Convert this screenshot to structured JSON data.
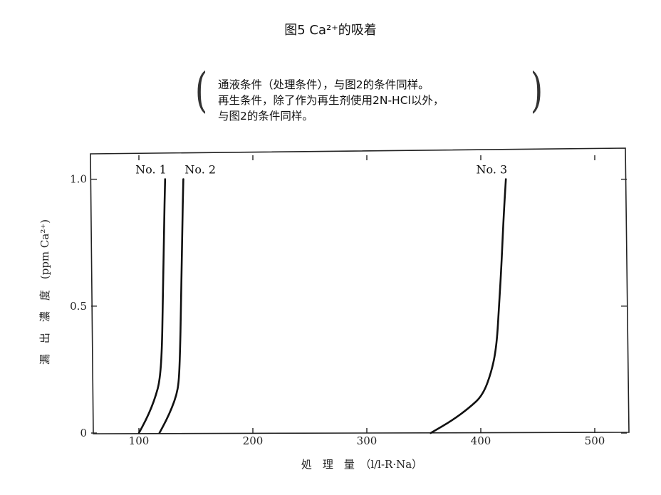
{
  "title": "图5  Ca²⁺的吸着",
  "note": {
    "line1": "通液条件（处理条件），与图2的条件同样。",
    "line2": "再生条件，除了作为再生剂使用2N-HCl以外，",
    "line3": "与图2的条件同样。"
  },
  "chart_data": {
    "type": "line",
    "xlabel": "処　理　量　（l/l-R·Na）",
    "ylabel": "漏　出　濃　度　(ppm Ca²⁺)",
    "xlim": [
      60,
      530
    ],
    "ylim": [
      0,
      1.1
    ],
    "x_ticks": [
      {
        "v": 100,
        "label": "100"
      },
      {
        "v": 200,
        "label": "200"
      },
      {
        "v": 300,
        "label": "300"
      },
      {
        "v": 400,
        "label": "400"
      },
      {
        "v": 500,
        "label": "500"
      }
    ],
    "y_ticks": [
      {
        "v": 0,
        "label": "0"
      },
      {
        "v": 0.5,
        "label": "0.5"
      },
      {
        "v": 1.0,
        "label": "1.0"
      }
    ],
    "series": [
      {
        "name": "No. 1",
        "x": [
          100,
          106,
          111,
          115,
          118,
          120,
          121,
          122,
          123
        ],
        "y": [
          0,
          0.05,
          0.1,
          0.15,
          0.2,
          0.3,
          0.5,
          0.8,
          1.0
        ]
      },
      {
        "name": "No. 2",
        "x": [
          118,
          124,
          129,
          133,
          135,
          136,
          137,
          138,
          139
        ],
        "y": [
          0,
          0.05,
          0.1,
          0.15,
          0.2,
          0.3,
          0.5,
          0.8,
          1.0
        ]
      },
      {
        "name": "No. 3",
        "x": [
          356,
          375,
          390,
          402,
          410,
          414,
          416,
          418,
          420,
          422
        ],
        "y": [
          0,
          0.05,
          0.1,
          0.15,
          0.25,
          0.35,
          0.5,
          0.65,
          0.85,
          1.0
        ]
      }
    ],
    "grid": false
  }
}
